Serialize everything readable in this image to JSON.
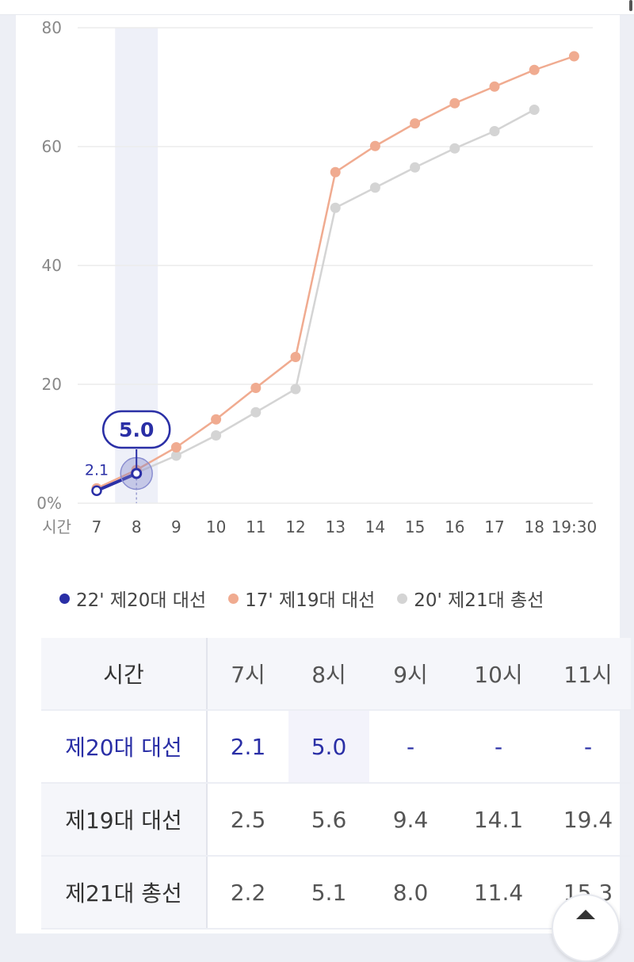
{
  "chart_data": {
    "type": "line",
    "x": [
      "7",
      "8",
      "9",
      "10",
      "11",
      "12",
      "13",
      "14",
      "15",
      "16",
      "17",
      "18",
      "19:30"
    ],
    "y_ticks": [
      "0%",
      "20",
      "40",
      "60",
      "80"
    ],
    "ylim": [
      0,
      80
    ],
    "xlabel": "시간",
    "grid": true,
    "legend_position": "bottom",
    "series": [
      {
        "name": "22' 제20대 대선",
        "color": "#2a2fa6",
        "values": [
          2.1,
          5.0,
          null,
          null,
          null,
          null,
          null,
          null,
          null,
          null,
          null,
          null,
          null
        ]
      },
      {
        "name": "17' 제19대 대선",
        "color": "#f0ab90",
        "values": [
          2.5,
          5.6,
          9.4,
          14.1,
          19.4,
          24.6,
          55.7,
          60.1,
          63.9,
          67.3,
          70.1,
          72.9,
          75.2
        ]
      },
      {
        "name": "20' 제21대 총선",
        "color": "#d4d4d4",
        "values": [
          2.2,
          5.1,
          8.0,
          11.4,
          15.3,
          19.2,
          49.7,
          53.1,
          56.5,
          59.7,
          62.6,
          66.2,
          null
        ]
      }
    ],
    "highlight": {
      "x": "8",
      "label": "5.0",
      "point_label_7": "2.1"
    }
  },
  "table": {
    "header": [
      "시간",
      "7시",
      "8시",
      "9시",
      "10시",
      "11시"
    ],
    "rows": [
      {
        "label": "제20대 대선",
        "values": [
          "2.1",
          "5.0",
          "-",
          "-",
          "-"
        ]
      },
      {
        "label": "제19대 대선",
        "values": [
          "2.5",
          "5.6",
          "9.4",
          "14.1",
          "19.4"
        ]
      },
      {
        "label": "제21대 총선",
        "values": [
          "2.2",
          "5.1",
          "8.0",
          "11.4",
          "15.3"
        ]
      }
    ]
  }
}
